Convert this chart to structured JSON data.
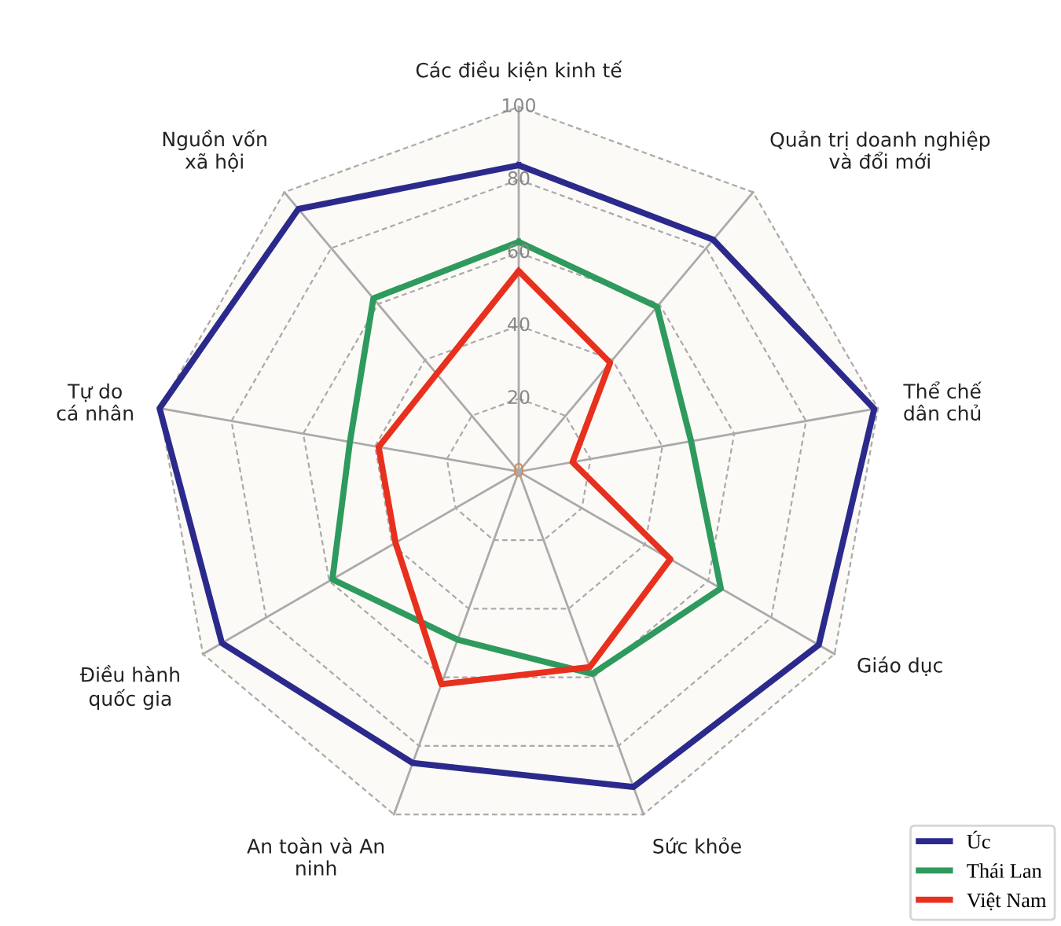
{
  "chart_data": {
    "type": "radar",
    "categories": [
      "Các điều kiện kinh tế",
      "Quản trị doanh nghiệp\nvà đổi mới",
      "Thể chế\ndân chủ",
      "Giáo dục",
      "Sức khỏe",
      "An toàn và An\nninh",
      "Điều hành\nquốc gia",
      "Tự do\ncá nhân",
      "Nguồn vốn\nxã hội"
    ],
    "series": [
      {
        "name": "Úc",
        "color": "#2b2a8c",
        "values": [
          84,
          83,
          99,
          95,
          92,
          85,
          94,
          100,
          94
        ]
      },
      {
        "name": "Thái Lan",
        "color": "#2e9a5e",
        "values": [
          63,
          59,
          48,
          64,
          59,
          49,
          59,
          47,
          62
        ]
      },
      {
        "name": "Việt Nam",
        "color": "#e8301e",
        "values": [
          55,
          39,
          15,
          48,
          57,
          62,
          39,
          39,
          35
        ]
      }
    ],
    "ylim": [
      0,
      100
    ],
    "yticks": [
      0,
      20,
      40,
      60,
      80,
      100
    ],
    "grid": true,
    "legend": "bottom right"
  }
}
